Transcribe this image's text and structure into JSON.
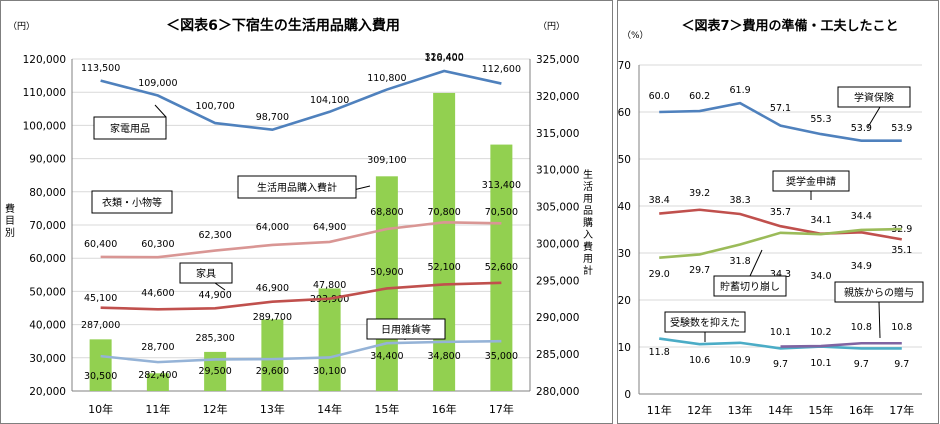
{
  "chart_data": [
    {
      "type": "bar",
      "title": "＜図表6＞下宿生の生活用品購入費用",
      "unit_left": "（円）",
      "unit_right": "（円）",
      "ylabel_left": "費目別",
      "ylabel_right": "生活用品購入費用計",
      "categories": [
        "10年",
        "11年",
        "12年",
        "13年",
        "14年",
        "15年",
        "16年",
        "17年"
      ],
      "ylim_left": [
        20000,
        120000
      ],
      "ylim_right": [
        280000,
        325000
      ],
      "yticks_left": [
        "20,000",
        "30,000",
        "40,000",
        "50,000",
        "60,000",
        "70,000",
        "80,000",
        "90,000",
        "100,000",
        "110,000",
        "120,000"
      ],
      "yticks_right": [
        "280,000",
        "285,000",
        "290,000",
        "295,000",
        "300,000",
        "305,000",
        "310,000",
        "315,000",
        "320,000",
        "325,000"
      ],
      "bars": {
        "name": "生活用品購入費計",
        "color": "#92d050",
        "values": [
          287000,
          282400,
          285300,
          289700,
          293900,
          309100,
          320400,
          313400
        ],
        "labels": [
          "287,000",
          "282,400",
          "285,300",
          "289,700",
          "293,900",
          "309,100",
          "320,400",
          "313,400"
        ]
      },
      "series": [
        {
          "name": "家電用品",
          "color": "#4f81bd",
          "values": [
            113500,
            109000,
            100700,
            98700,
            104100,
            110800,
            116400,
            112600
          ],
          "labels": [
            "113,500",
            "109,000",
            "100,700",
            "98,700",
            "104,100",
            "110,800",
            "116,400",
            "112,600"
          ]
        },
        {
          "name": "衣類・小物等",
          "color": "#d99694",
          "values": [
            60400,
            60300,
            62300,
            64000,
            64900,
            68800,
            70800,
            70500
          ],
          "labels": [
            "60,400",
            "60,300",
            "62,300",
            "64,000",
            "64,900",
            "68,800",
            "70,800",
            "70,500"
          ]
        },
        {
          "name": "家具",
          "color": "#c0504d",
          "values": [
            45100,
            44600,
            44900,
            46900,
            47800,
            50900,
            52100,
            52600
          ],
          "labels": [
            "45,100",
            "44,600",
            "44,900",
            "46,900",
            "47,800",
            "50,900",
            "52,100",
            "52,600"
          ]
        },
        {
          "name": "日用雑貨等",
          "color": "#95b3d7",
          "values": [
            30500,
            28700,
            29500,
            29600,
            30100,
            34400,
            34800,
            35000
          ],
          "labels": [
            "30,500",
            "28,700",
            "29,500",
            "29,600",
            "30,100",
            "34,400",
            "34,800",
            "35,000"
          ]
        }
      ]
    },
    {
      "type": "line",
      "title": "＜図表7＞費用の準備・工夫したこと",
      "unit": "（%）",
      "categories": [
        "11年",
        "12年",
        "13年",
        "14年",
        "15年",
        "16年",
        "17年"
      ],
      "ylim": [
        0,
        70
      ],
      "yticks": [
        "0",
        "10",
        "20",
        "30",
        "40",
        "50",
        "60",
        "70"
      ],
      "series": [
        {
          "name": "学資保険",
          "color": "#4f81bd",
          "values": [
            60.0,
            60.2,
            61.9,
            57.1,
            55.3,
            53.9,
            53.9
          ],
          "labels": [
            "60.0",
            "60.2",
            "61.9",
            "57.1",
            "55.3",
            "53.9",
            "53.9"
          ]
        },
        {
          "name": "奨学金申請",
          "color": "#c0504d",
          "values": [
            38.4,
            39.2,
            38.3,
            35.7,
            34.1,
            34.4,
            32.9
          ],
          "labels": [
            "38.4",
            "39.2",
            "38.3",
            "35.7",
            "34.1",
            "34.4",
            "32.9"
          ]
        },
        {
          "name": "貯蓄切り崩し",
          "color": "#9bbb59",
          "values": [
            29.0,
            29.7,
            31.8,
            34.3,
            34.0,
            34.9,
            35.1
          ],
          "labels": [
            "29.0",
            "29.7",
            "31.8",
            "34.3",
            "34.0",
            "34.9",
            "35.1"
          ]
        },
        {
          "name": "受験数を抑えた",
          "color": "#4bacc6",
          "values": [
            11.8,
            10.6,
            10.9,
            9.7,
            10.1,
            9.7,
            9.7
          ],
          "labels": [
            "11.8",
            "10.6",
            "10.9",
            "9.7",
            "10.1",
            "9.7",
            "9.7"
          ]
        },
        {
          "name": "親族からの贈与",
          "color": "#8064a2",
          "values": [
            null,
            null,
            null,
            10.1,
            10.2,
            10.8,
            10.8
          ],
          "labels": [
            "",
            "",
            "",
            "10.1",
            "10.2",
            "10.8",
            "10.8"
          ]
        }
      ]
    }
  ]
}
